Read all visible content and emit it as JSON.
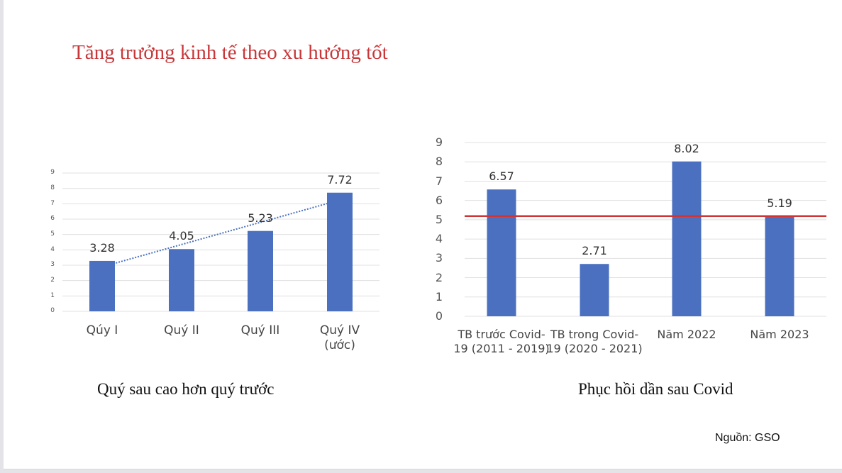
{
  "slide": {
    "title": "Tăng trưởng kinh tế theo xu hướng tốt",
    "left_caption": "Quý sau cao hơn quý trước",
    "right_caption": "Phục hồi dần sau Covid",
    "source": "Nguồn: GSO"
  },
  "colors": {
    "title": "#c8383a",
    "bar": "#4a70bf",
    "trendline": "#4a70bf",
    "reference_line": "#d23434",
    "gridline": "#e0e0e0"
  },
  "chart_data": [
    {
      "type": "bar",
      "title": "",
      "caption": "Quý sau cao hơn quý trước",
      "categories": [
        "Qúy I",
        "Quý II",
        "Quý III",
        "Quý IV (ước)"
      ],
      "category_lines": [
        [
          "Qúy I"
        ],
        [
          "Quý II"
        ],
        [
          "Quý III"
        ],
        [
          "Quý IV",
          "(ước)"
        ]
      ],
      "values": [
        3.28,
        4.05,
        5.23,
        7.72
      ],
      "data_labels": [
        "3.28",
        "4.05",
        "5.23",
        "7.72"
      ],
      "yticks": [
        "0",
        "1",
        "2",
        "3",
        "4",
        "5",
        "6",
        "7",
        "8",
        "9"
      ],
      "ylim": [
        0,
        9
      ],
      "xlabel": "",
      "ylabel": "",
      "grid": true,
      "legend": "none",
      "annotations": [
        "dotted linear trendline from Qúy I to Quý IV"
      ]
    },
    {
      "type": "bar",
      "title": "",
      "caption": "Phục hồi dần sau Covid",
      "categories": [
        "TB trước Covid-19 (2011 - 2019)",
        "TB trong Covid-19 (2020 - 2021)",
        "Năm 2022",
        "Năm 2023"
      ],
      "category_lines": [
        [
          "TB trước Covid-",
          "19 (2011 - 2019)"
        ],
        [
          "TB trong Covid-",
          "19 (2020 - 2021)"
        ],
        [
          "Năm 2022"
        ],
        [
          "Năm 2023"
        ]
      ],
      "values": [
        6.57,
        2.71,
        8.02,
        5.19
      ],
      "data_labels": [
        "6.57",
        "2.71",
        "8.02",
        "5.19"
      ],
      "yticks": [
        "0",
        "1",
        "2",
        "3",
        "4",
        "5",
        "6",
        "7",
        "8",
        "9"
      ],
      "ylim": [
        0,
        9
      ],
      "xlabel": "",
      "ylabel": "",
      "grid": true,
      "legend": "none",
      "annotations": [
        "horizontal red reference line at 5.19"
      ],
      "reference_line": 5.19
    }
  ]
}
